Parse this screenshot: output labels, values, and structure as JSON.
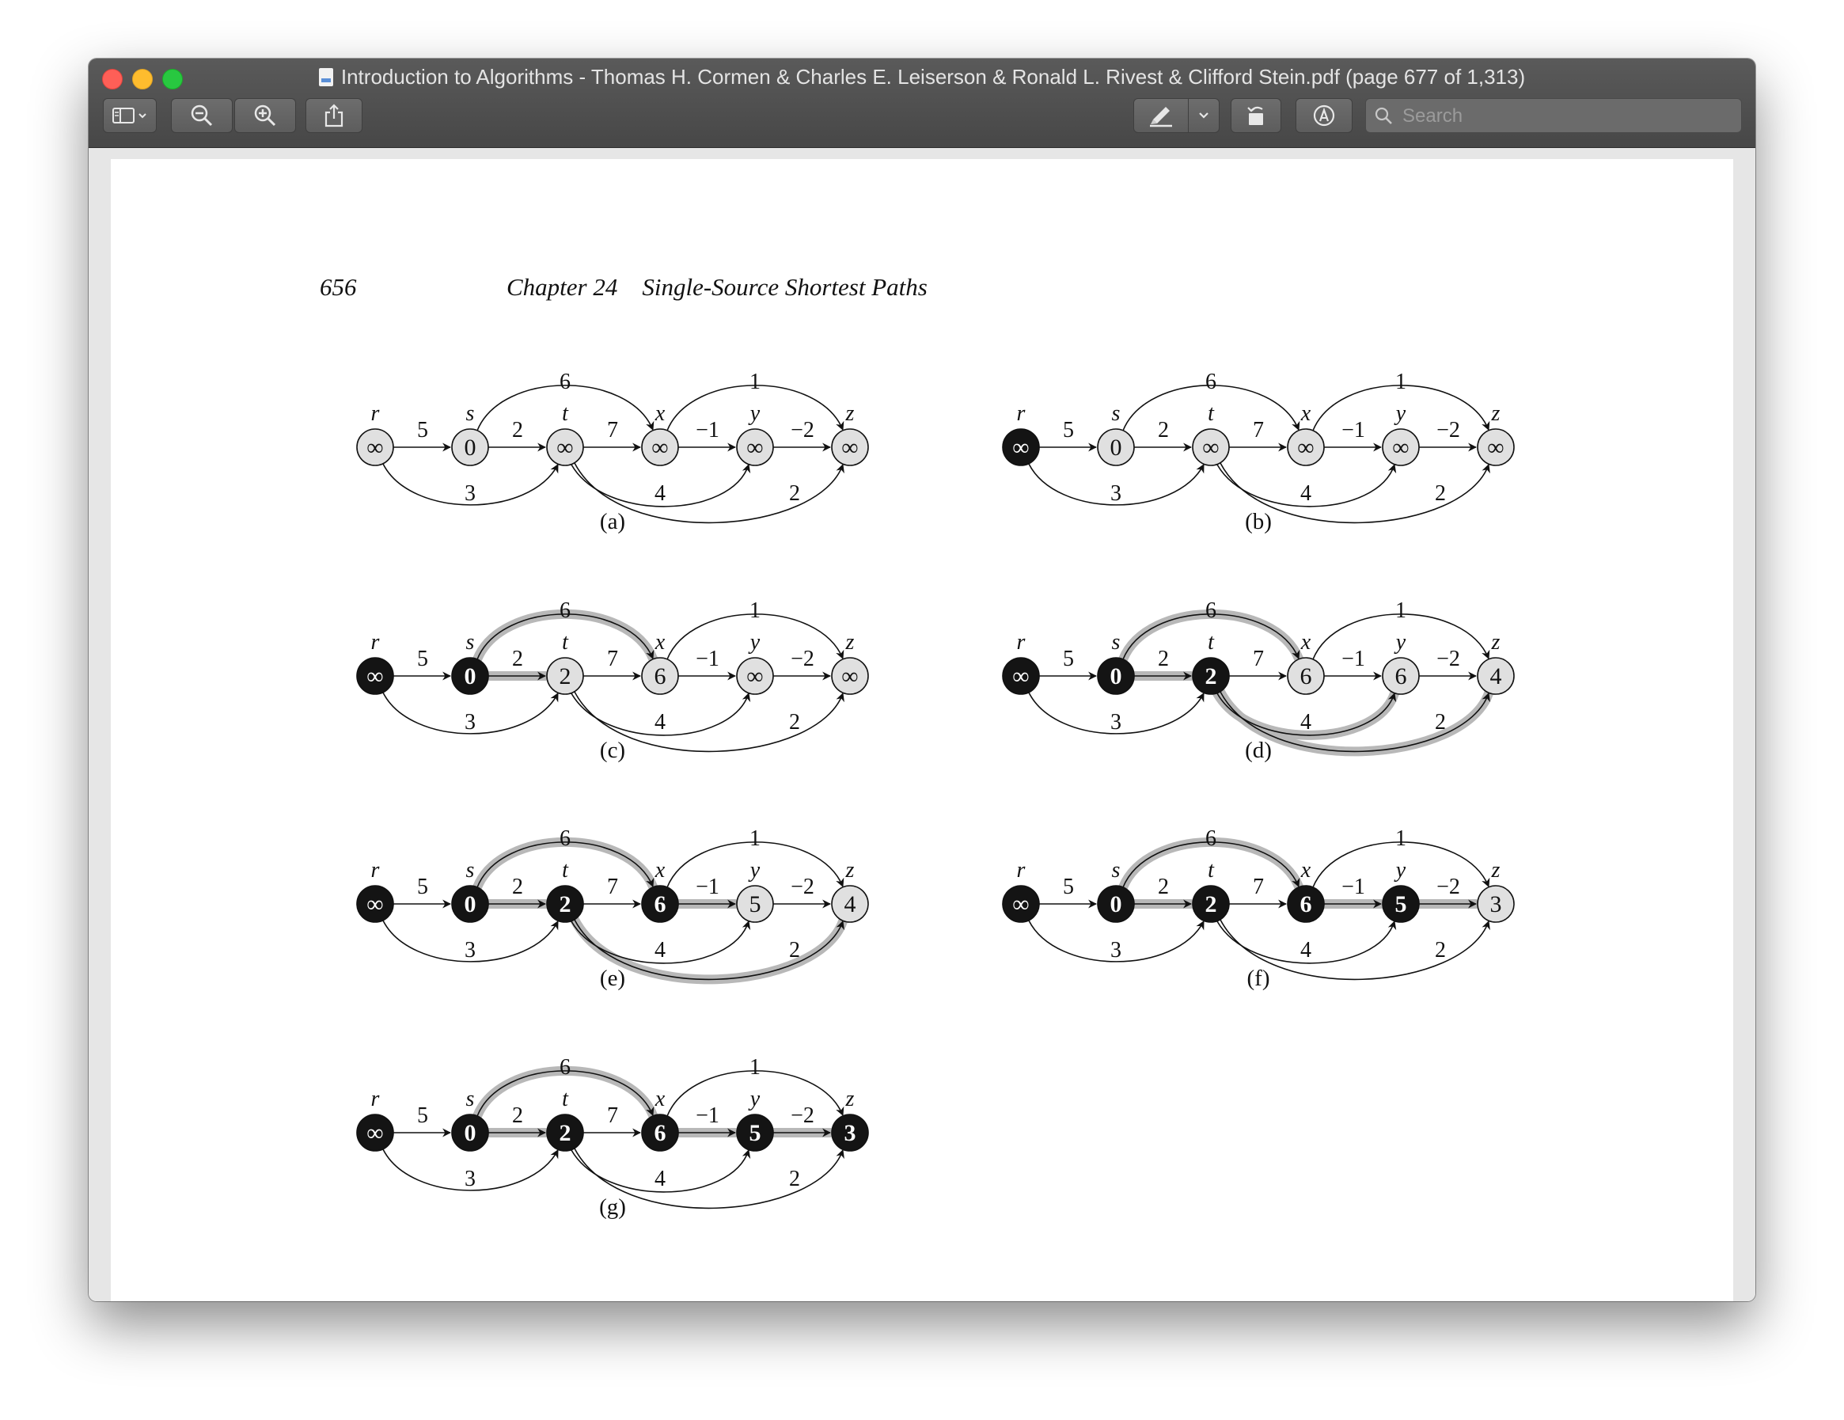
{
  "window": {
    "title": "Introduction to Algorithms - Thomas H. Cormen & Charles E. Leiserson & Ronald L. Rivest & Clifford Stein.pdf (page 677 of 1,313)"
  },
  "toolbar": {
    "search_placeholder": "Search",
    "icons": [
      "sidebar-icon",
      "chevron-down-icon",
      "zoom-out-icon",
      "zoom-in-icon",
      "share-icon",
      "highlight-pen-icon",
      "chevron-down-icon",
      "rotate-icon",
      "markup-icon",
      "search-icon"
    ]
  },
  "page": {
    "page_number": "656",
    "running_head": "Chapter 24    Single-Source Shortest Paths"
  },
  "graph": {
    "vertices": [
      "r",
      "s",
      "t",
      "x",
      "y",
      "z"
    ],
    "edges": [
      {
        "id": "rs",
        "from": "r",
        "to": "s",
        "weight": "5"
      },
      {
        "id": "st",
        "from": "s",
        "to": "t",
        "weight": "2"
      },
      {
        "id": "tx",
        "from": "t",
        "to": "x",
        "weight": "7"
      },
      {
        "id": "xy",
        "from": "x",
        "to": "y",
        "weight": "−1"
      },
      {
        "id": "yz",
        "from": "y",
        "to": "z",
        "weight": "−2"
      },
      {
        "id": "sx",
        "from": "s",
        "to": "x",
        "weight": "6"
      },
      {
        "id": "xz",
        "from": "x",
        "to": "z",
        "weight": "1"
      },
      {
        "id": "rt",
        "from": "r",
        "to": "t",
        "weight": "3"
      },
      {
        "id": "ty",
        "from": "t",
        "to": "y",
        "weight": "4"
      },
      {
        "id": "tz",
        "from": "t",
        "to": "z",
        "weight": "2"
      }
    ]
  },
  "panels": [
    {
      "label": "(a)",
      "d": [
        "∞",
        "0",
        "∞",
        "∞",
        "∞",
        "∞"
      ],
      "state": [
        "g",
        "g",
        "g",
        "g",
        "g",
        "g"
      ],
      "shaded": []
    },
    {
      "label": "(b)",
      "d": [
        "∞",
        "0",
        "∞",
        "∞",
        "∞",
        "∞"
      ],
      "state": [
        "b",
        "g",
        "g",
        "g",
        "g",
        "g"
      ],
      "shaded": []
    },
    {
      "label": "(c)",
      "d": [
        "∞",
        "0",
        "2",
        "6",
        "∞",
        "∞"
      ],
      "state": [
        "b",
        "b",
        "g",
        "g",
        "g",
        "g"
      ],
      "shaded": [
        "st",
        "sx"
      ]
    },
    {
      "label": "(d)",
      "d": [
        "∞",
        "0",
        "2",
        "6",
        "6",
        "4"
      ],
      "state": [
        "b",
        "b",
        "b",
        "g",
        "g",
        "g"
      ],
      "shaded": [
        "st",
        "sx",
        "ty",
        "tz"
      ]
    },
    {
      "label": "(e)",
      "d": [
        "∞",
        "0",
        "2",
        "6",
        "5",
        "4"
      ],
      "state": [
        "b",
        "b",
        "b",
        "b",
        "g",
        "g"
      ],
      "shaded": [
        "st",
        "sx",
        "xy",
        "tz"
      ]
    },
    {
      "label": "(f)",
      "d": [
        "∞",
        "0",
        "2",
        "6",
        "5",
        "3"
      ],
      "state": [
        "b",
        "b",
        "b",
        "b",
        "b",
        "g"
      ],
      "shaded": [
        "st",
        "sx",
        "xy",
        "yz"
      ]
    },
    {
      "label": "(g)",
      "d": [
        "∞",
        "0",
        "2",
        "6",
        "5",
        "3"
      ],
      "state": [
        "b",
        "b",
        "b",
        "b",
        "b",
        "b"
      ],
      "shaded": [
        "st",
        "sx",
        "xy",
        "yz"
      ]
    }
  ],
  "colors": {
    "vertex_gray": "#e0e0e0",
    "vertex_black": "#141414",
    "shaded_edge": "#b8b8b8"
  }
}
